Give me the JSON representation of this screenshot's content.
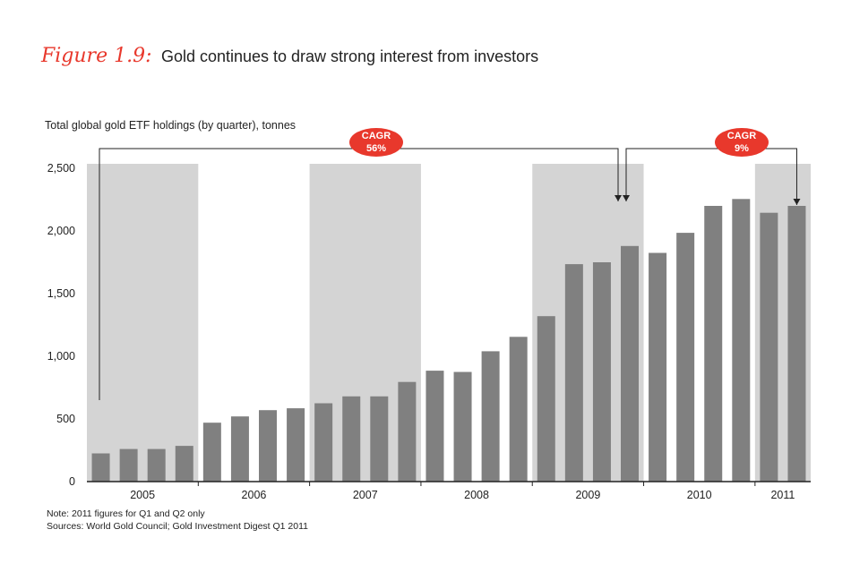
{
  "figure_label": "Figure 1.9:",
  "title": "Gold continues to draw strong interest from investors",
  "ylabel": "Total global gold ETF holdings (by quarter), tonnes",
  "note": "Note: 2011 figures for Q1 and Q2 only",
  "sources": "Sources: World Gold Council; Gold Investment Digest Q1 2011",
  "colors": {
    "bar": "#808080",
    "band": "#d4d4d4",
    "accent": "#e8382c",
    "axis": "#222222"
  },
  "chart_data": {
    "type": "bar",
    "title": "Gold continues to draw strong interest from investors",
    "ylabel": "Total global gold ETF holdings (by quarter), tonnes",
    "xlabel": "",
    "ylim": [
      0,
      2500
    ],
    "yticks": [
      0,
      500,
      1000,
      1500,
      2000,
      2500
    ],
    "ytick_labels": [
      "0",
      "500",
      "1,000",
      "1,500",
      "2,000",
      "2,500"
    ],
    "grid": false,
    "years": [
      {
        "label": "2005",
        "quarters": 4,
        "shaded": true
      },
      {
        "label": "2006",
        "quarters": 4,
        "shaded": false
      },
      {
        "label": "2007",
        "quarters": 4,
        "shaded": true
      },
      {
        "label": "2008",
        "quarters": 4,
        "shaded": false
      },
      {
        "label": "2009",
        "quarters": 4,
        "shaded": true
      },
      {
        "label": "2010",
        "quarters": 4,
        "shaded": false
      },
      {
        "label": "2011",
        "quarters": 2,
        "shaded": true
      }
    ],
    "values": [
      225,
      260,
      260,
      285,
      470,
      520,
      570,
      585,
      625,
      680,
      680,
      795,
      885,
      875,
      1040,
      1155,
      1320,
      1735,
      1750,
      1880,
      1825,
      1985,
      2200,
      2255,
      2145,
      2200
    ],
    "annotations": [
      {
        "label": "CAGR",
        "value": "56%",
        "from_index": 0,
        "to_index": 19
      },
      {
        "label": "CAGR",
        "value": "9%",
        "from_index": 19,
        "to_index": 25
      }
    ]
  }
}
